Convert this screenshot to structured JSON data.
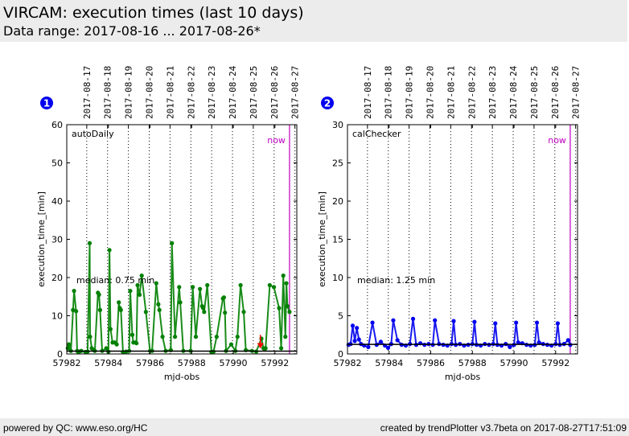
{
  "header": {
    "title": "VIRCAM: execution times (last 10 days)",
    "subtitle": "Data range: 2017-08-16 ... 2017-08-26*"
  },
  "footer": {
    "left": "powered by QC: www.eso.org/HC",
    "right": "created by trendPlotter v3.7beta on 2017-08-27T17:51:09"
  },
  "colors": {
    "panel1_series": "#008000",
    "panel2_series": "#0000ee",
    "now_line": "#bf00bf",
    "outlier_arrow": "#ff0000",
    "badge": "#0000ee"
  },
  "chart_data": [
    {
      "type": "line",
      "badge": "1",
      "label": "autoDaily",
      "xlabel": "mjd-obs",
      "ylabel": "execution_time_[min]",
      "xlim": [
        57982,
        57993.05
      ],
      "ylim": [
        0,
        60
      ],
      "xticks": [
        57982,
        57984,
        57986,
        57988,
        57990,
        57992
      ],
      "yticks": [
        0,
        10,
        20,
        30,
        40,
        50,
        60
      ],
      "date_ticks": [
        "2017-08-17",
        "2017-08-18",
        "2017-08-19",
        "2017-08-20",
        "2017-08-21",
        "2017-08-22",
        "2017-08-23",
        "2017-08-24",
        "2017-08-25",
        "2017-08-26",
        "2017-08-27"
      ],
      "date_tick_mjd": [
        57982.96,
        57983.96,
        57984.96,
        57985.96,
        57986.96,
        57987.96,
        57988.96,
        57989.96,
        57990.96,
        57991.96,
        57992.96
      ],
      "now_mjd": 57992.7,
      "now_label": "now",
      "median": 0.75,
      "median_label": "median: 0.75 min",
      "outlier": {
        "x": 57991.3,
        "y_from": 5,
        "y_to": 2
      },
      "series": [
        {
          "name": "autoDaily",
          "x": [
            57982.05,
            57982.1,
            57982.2,
            57982.3,
            57982.35,
            57982.45,
            57982.5,
            57982.55,
            57982.6,
            57982.7,
            57982.9,
            57983.0,
            57983.1,
            57983.12,
            57983.2,
            57983.3,
            57983.35,
            57983.5,
            57983.55,
            57983.6,
            57983.7,
            57983.9,
            57984.0,
            57984.05,
            57984.1,
            57984.2,
            57984.3,
            57984.4,
            57984.5,
            57984.55,
            57984.6,
            57984.7,
            57984.85,
            57985.0,
            57985.05,
            57985.15,
            57985.2,
            57985.3,
            57985.35,
            57985.4,
            57985.5,
            57985.6,
            57985.8,
            57986.0,
            57986.1,
            57986.3,
            57986.4,
            57986.45,
            57986.6,
            57986.75,
            57987.0,
            57987.05,
            57987.2,
            57987.4,
            57987.45,
            57987.6,
            57987.95,
            57988.05,
            57988.2,
            57988.4,
            57988.5,
            57988.55,
            57988.6,
            57988.75,
            57988.95,
            57989.05,
            57989.2,
            57989.5,
            57989.55,
            57989.6,
            57989.65,
            57989.9,
            57990.1,
            57990.2,
            57990.35,
            57990.5,
            57990.6,
            57990.9,
            57991.1,
            57991.35,
            57991.45,
            57991.5,
            57991.55,
            57991.75,
            57991.95,
            57992.2,
            57992.3,
            57992.4,
            57992.5,
            57992.55,
            57992.6,
            57992.7
          ],
          "y": [
            1.5,
            2.5,
            0.8,
            11.5,
            16.5,
            11.2,
            0.8,
            0.5,
            0.6,
            0.8,
            0.5,
            0.6,
            29,
            4.5,
            1.5,
            1,
            0.8,
            16,
            15.5,
            11.5,
            0.8,
            1.5,
            0.6,
            27.2,
            6.5,
            3,
            3,
            2.5,
            13.5,
            12,
            11.5,
            0.5,
            0.6,
            0.8,
            16.5,
            5,
            3,
            3,
            2.8,
            18,
            15.5,
            20.5,
            11,
            0.8,
            0.8,
            18.5,
            13,
            11.5,
            4.5,
            0.8,
            1,
            29,
            4.5,
            17.5,
            13.5,
            0.8,
            0.8,
            17.5,
            4.5,
            17,
            12.5,
            12,
            11,
            18,
            0.5,
            0.6,
            4.5,
            14.5,
            14.8,
            10.8,
            0.8,
            2.5,
            0.8,
            4.5,
            18,
            11,
            1,
            0.8,
            0.6,
            4,
            1.5,
            1.2,
            1.5,
            18,
            17.5,
            12,
            1.5,
            20.5,
            4.5,
            18.5,
            12.5,
            11
          ]
        }
      ]
    },
    {
      "type": "line",
      "badge": "2",
      "label": "calChecker",
      "xlabel": "mjd-obs",
      "ylabel": "execution_time_[min]",
      "xlim": [
        57982,
        57993.05
      ],
      "ylim": [
        0,
        30
      ],
      "xticks": [
        57982,
        57984,
        57986,
        57988,
        57990,
        57992
      ],
      "yticks": [
        0,
        5,
        10,
        15,
        20,
        25,
        30
      ],
      "date_ticks": [
        "2017-08-17",
        "2017-08-18",
        "2017-08-19",
        "2017-08-20",
        "2017-08-21",
        "2017-08-22",
        "2017-08-23",
        "2017-08-24",
        "2017-08-25",
        "2017-08-26",
        "2017-08-27"
      ],
      "date_tick_mjd": [
        57982.96,
        57983.96,
        57984.96,
        57985.96,
        57986.96,
        57987.96,
        57988.96,
        57989.96,
        57990.96,
        57991.96,
        57992.96
      ],
      "now_mjd": 57992.7,
      "now_label": "now",
      "median": 1.25,
      "median_label": "median: 1.25 min",
      "series": [
        {
          "name": "calChecker",
          "x": [
            57982.05,
            57982.15,
            57982.25,
            57982.35,
            57982.45,
            57982.55,
            57982.65,
            57982.8,
            57983.0,
            57983.2,
            57983.4,
            57983.6,
            57983.8,
            57983.95,
            57984.1,
            57984.2,
            57984.4,
            57984.6,
            57984.8,
            57985.0,
            57985.15,
            57985.3,
            57985.5,
            57985.7,
            57985.9,
            57986.1,
            57986.2,
            57986.4,
            57986.6,
            57986.8,
            57987.0,
            57987.1,
            57987.2,
            57987.4,
            57987.6,
            57987.8,
            57988.0,
            57988.1,
            57988.2,
            57988.4,
            57988.6,
            57988.8,
            57989.0,
            57989.1,
            57989.2,
            57989.4,
            57989.6,
            57989.8,
            57990.0,
            57990.1,
            57990.2,
            57990.4,
            57990.6,
            57990.8,
            57991.0,
            57991.1,
            57991.2,
            57991.4,
            57991.6,
            57991.8,
            57992.0,
            57992.1,
            57992.2,
            57992.4,
            57992.6,
            57992.7
          ],
          "y": [
            1.2,
            1.3,
            3.7,
            1.7,
            3.4,
            1.9,
            1.3,
            1.1,
            0.9,
            4.1,
            1.2,
            1.6,
            1.1,
            0.8,
            1.3,
            4.4,
            1.8,
            1.2,
            1.1,
            1.3,
            4.6,
            1.2,
            1.4,
            1.2,
            1.3,
            1.2,
            4.4,
            1.3,
            1.2,
            1.1,
            1.3,
            4.3,
            1.2,
            1.3,
            1.1,
            1.2,
            1.3,
            4.2,
            1.2,
            1.1,
            1.3,
            1.2,
            1.3,
            4.0,
            1.2,
            1.1,
            1.3,
            0.9,
            1.2,
            4.1,
            1.5,
            1.4,
            1.2,
            1.1,
            1.2,
            4.1,
            1.5,
            1.3,
            1.2,
            1.1,
            1.3,
            4.0,
            1.2,
            1.3,
            1.8,
            1.2
          ]
        }
      ]
    }
  ]
}
